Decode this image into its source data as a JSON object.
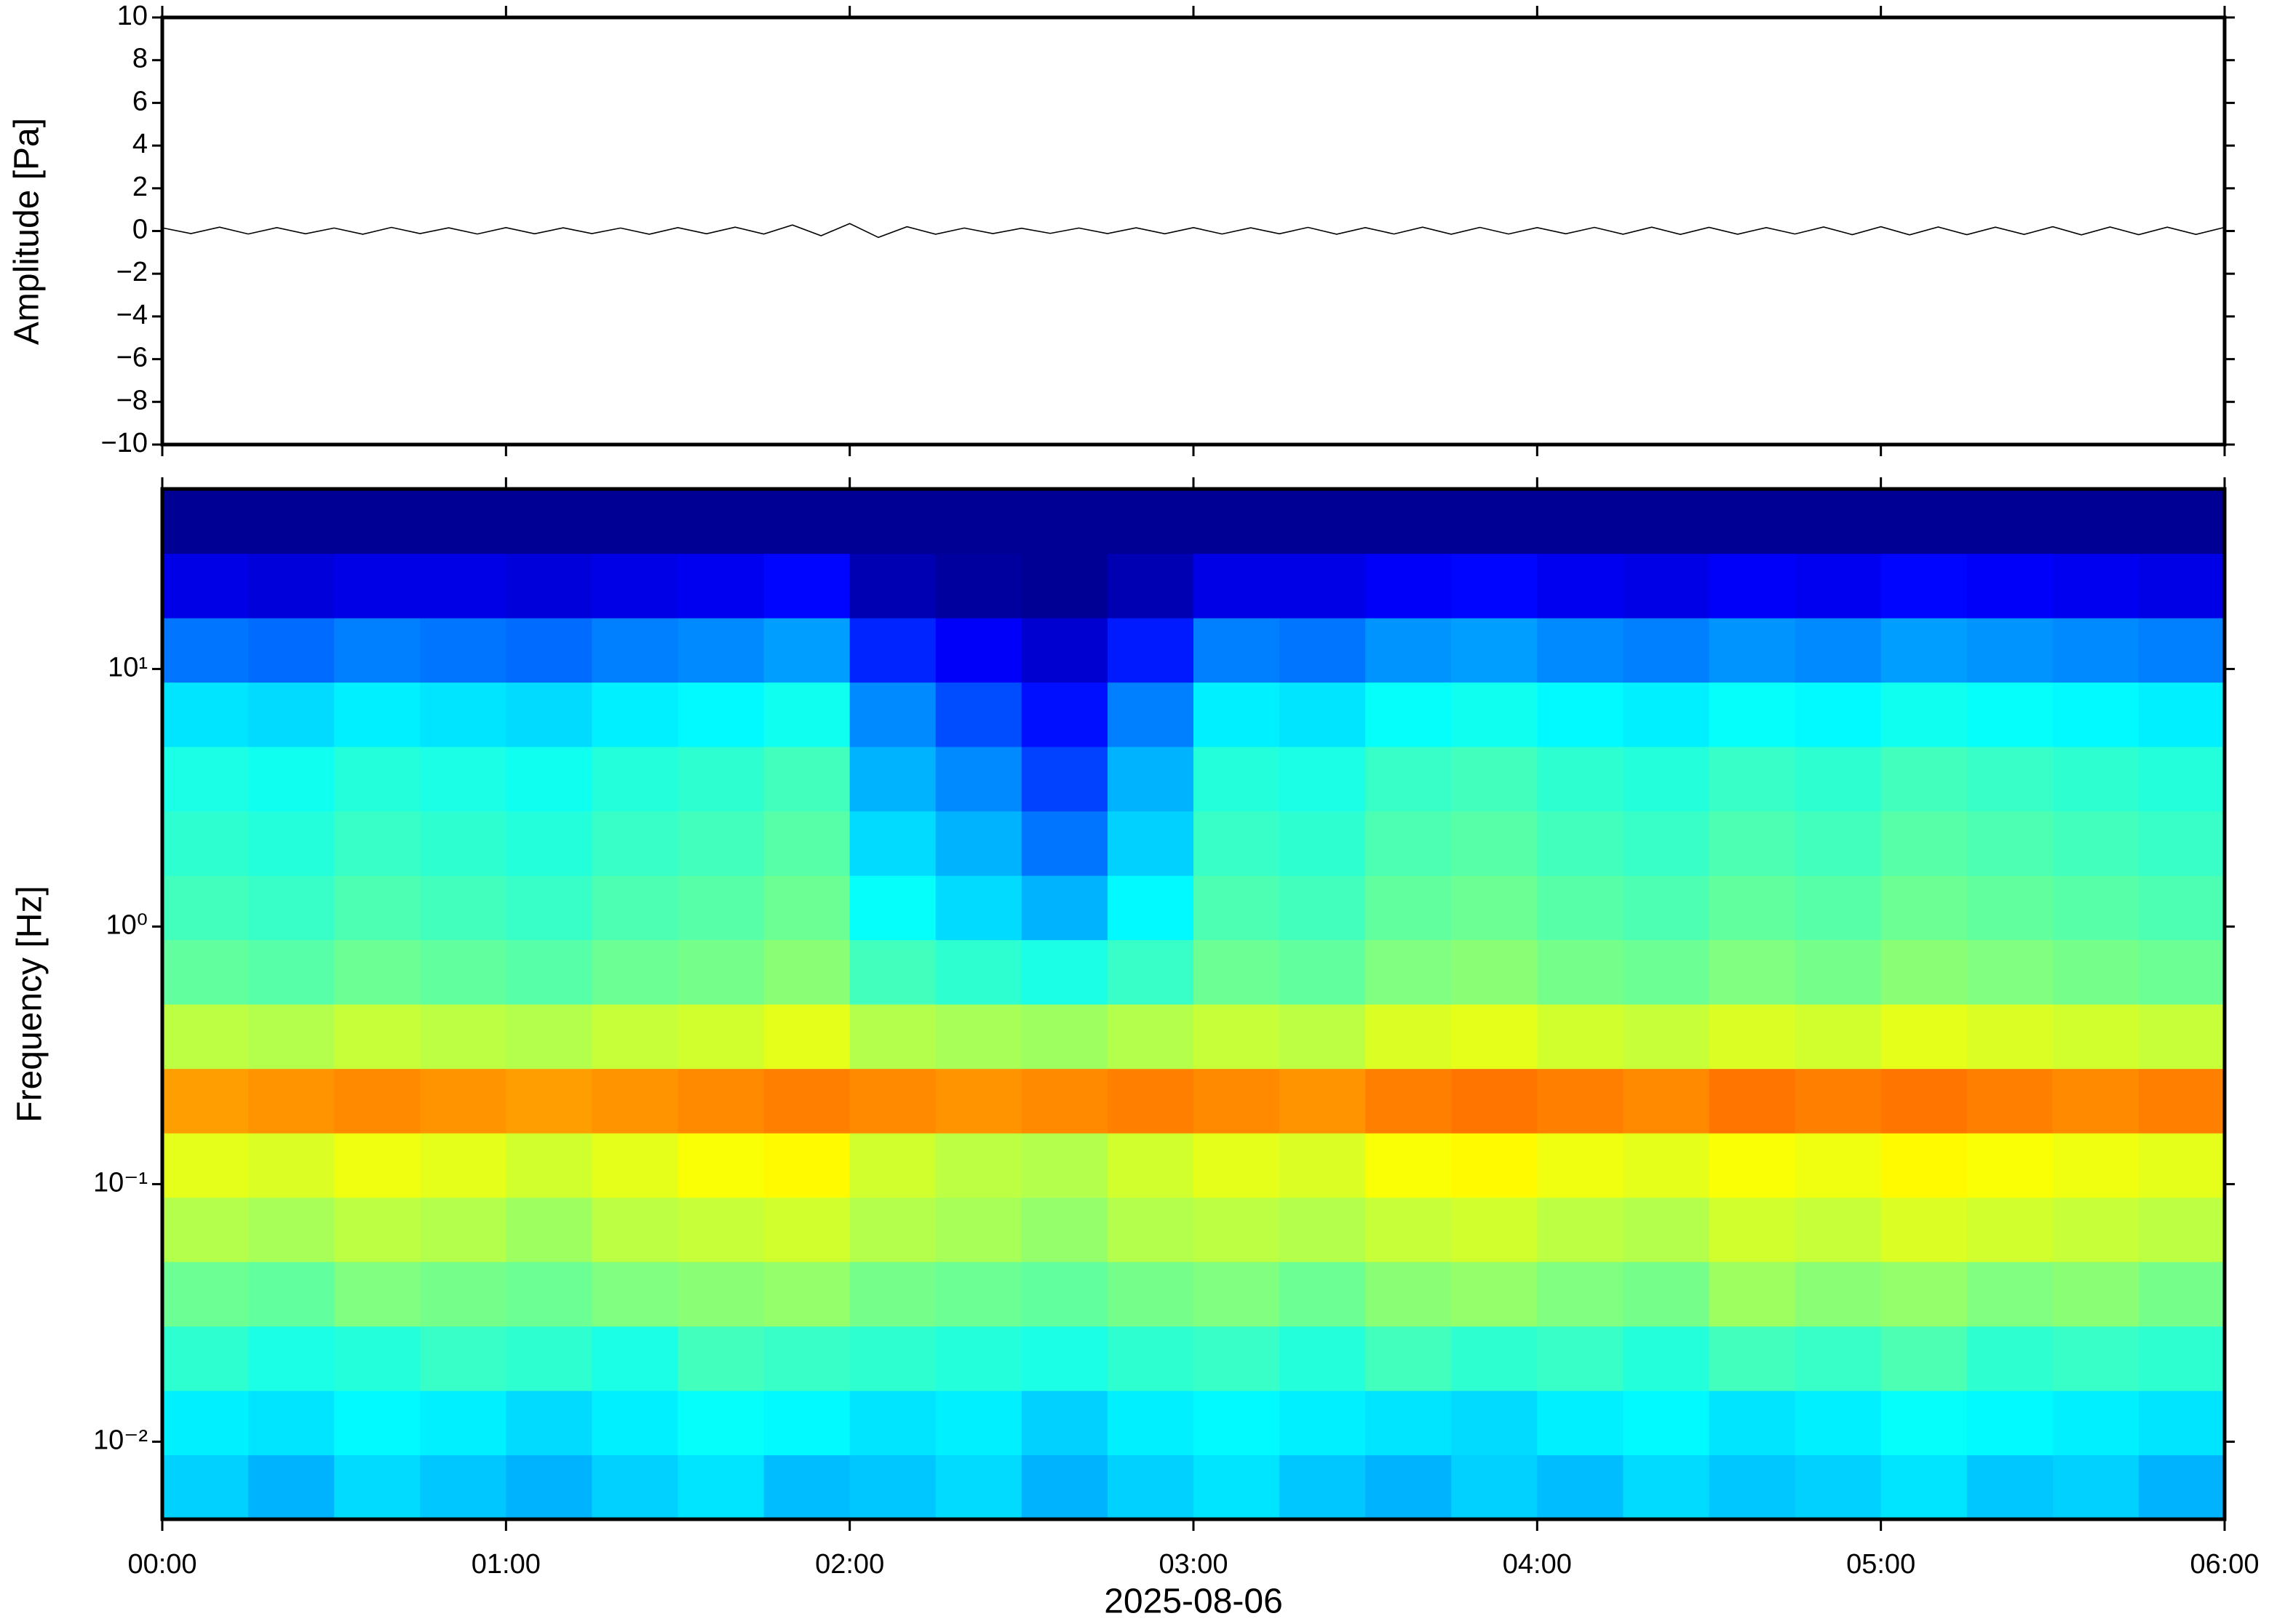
{
  "chart_data": [
    {
      "type": "line",
      "ylabel": "Amplitude [Pa]",
      "color": "#000000",
      "xlim": [
        0,
        360
      ],
      "xticks": [
        0,
        60,
        120,
        180,
        240,
        300,
        360
      ],
      "ylim": [
        -10,
        10
      ],
      "yticks": [
        {
          "value": -10,
          "label": "−10"
        },
        {
          "value": -8,
          "label": "−8"
        },
        {
          "value": -6,
          "label": "−6"
        },
        {
          "value": -4,
          "label": "−4"
        },
        {
          "value": -2,
          "label": "−2"
        },
        0,
        2,
        4,
        6,
        8,
        10
      ],
      "x": [
        0,
        5,
        10,
        15,
        20,
        25,
        30,
        35,
        40,
        45,
        50,
        55,
        60,
        65,
        70,
        75,
        80,
        85,
        90,
        95,
        100,
        105,
        110,
        115,
        120,
        125,
        130,
        135,
        140,
        145,
        150,
        155,
        160,
        165,
        170,
        175,
        180,
        185,
        190,
        195,
        200,
        205,
        210,
        215,
        220,
        225,
        230,
        235,
        240,
        245,
        250,
        255,
        260,
        265,
        270,
        275,
        280,
        285,
        290,
        295,
        300,
        305,
        310,
        315,
        320,
        325,
        330,
        335,
        340,
        345,
        350,
        355,
        360
      ],
      "values": [
        0.15,
        -0.12,
        0.18,
        -0.14,
        0.16,
        -0.13,
        0.14,
        -0.15,
        0.17,
        -0.12,
        0.15,
        -0.14,
        0.16,
        -0.13,
        0.15,
        -0.12,
        0.14,
        -0.15,
        0.16,
        -0.13,
        0.18,
        -0.14,
        0.28,
        -0.22,
        0.35,
        -0.3,
        0.2,
        -0.15,
        0.14,
        -0.12,
        0.13,
        -0.11,
        0.14,
        -0.12,
        0.15,
        -0.13,
        0.16,
        -0.14,
        0.15,
        -0.13,
        0.17,
        -0.15,
        0.16,
        -0.14,
        0.18,
        -0.15,
        0.17,
        -0.14,
        0.16,
        -0.13,
        0.17,
        -0.15,
        0.18,
        -0.16,
        0.17,
        -0.15,
        0.16,
        -0.14,
        0.19,
        -0.17,
        0.2,
        -0.18,
        0.19,
        -0.17,
        0.18,
        -0.16,
        0.2,
        -0.18,
        0.19,
        -0.17,
        0.18,
        -0.16,
        0.17
      ]
    },
    {
      "type": "heatmap",
      "ylabel": "Frequency [Hz]",
      "xlabel": "2025-08-06",
      "colormap": "jet",
      "log_y": true,
      "xlim": [
        0,
        360
      ],
      "xticks": [
        {
          "value": 0,
          "label": "00:00"
        },
        {
          "value": 60,
          "label": "01:00"
        },
        {
          "value": 120,
          "label": "02:00"
        },
        {
          "value": 180,
          "label": "03:00"
        },
        {
          "value": 240,
          "label": "04:00"
        },
        {
          "value": 300,
          "label": "05:00"
        },
        {
          "value": 360,
          "label": "06:00"
        }
      ],
      "ylim": [
        0.005,
        50
      ],
      "yticks": [
        {
          "value": 0.01,
          "label": "10⁻²"
        },
        {
          "value": 0.1,
          "label": "10⁻¹"
        },
        {
          "value": 1,
          "label": "10⁰"
        },
        {
          "value": 10,
          "label": "10¹"
        }
      ],
      "x_bins": [
        0,
        15,
        30,
        45,
        60,
        75,
        90,
        105,
        120,
        135,
        150,
        165,
        180,
        195,
        210,
        225,
        240,
        255,
        270,
        285,
        300,
        315,
        330,
        345,
        360
      ],
      "y_bins": [
        0.005,
        0.00889,
        0.0158,
        0.0281,
        0.05,
        0.0889,
        0.158,
        0.281,
        0.5,
        0.889,
        1.58,
        2.81,
        5,
        8.89,
        15.8,
        28.1,
        50
      ],
      "z": [
        [
          0.33,
          0.3,
          0.34,
          0.32,
          0.3,
          0.33,
          0.35,
          0.31,
          0.32,
          0.34,
          0.3,
          0.33,
          0.35,
          0.32,
          0.3,
          0.33,
          0.31,
          0.34,
          0.32,
          0.33,
          0.35,
          0.32,
          0.33,
          0.3
        ],
        [
          0.36,
          0.35,
          0.37,
          0.36,
          0.34,
          0.36,
          0.38,
          0.37,
          0.35,
          0.36,
          0.33,
          0.36,
          0.37,
          0.36,
          0.35,
          0.34,
          0.36,
          0.37,
          0.35,
          0.36,
          0.38,
          0.37,
          0.36,
          0.35
        ],
        [
          0.42,
          0.4,
          0.41,
          0.43,
          0.42,
          0.4,
          0.44,
          0.43,
          0.42,
          0.41,
          0.4,
          0.42,
          0.43,
          0.41,
          0.44,
          0.42,
          0.43,
          0.41,
          0.44,
          0.43,
          0.45,
          0.42,
          0.43,
          0.42
        ],
        [
          0.48,
          0.47,
          0.5,
          0.49,
          0.48,
          0.5,
          0.51,
          0.52,
          0.49,
          0.48,
          0.47,
          0.49,
          0.5,
          0.48,
          0.51,
          0.52,
          0.5,
          0.49,
          0.53,
          0.51,
          0.52,
          0.5,
          0.51,
          0.49
        ],
        [
          0.55,
          0.54,
          0.56,
          0.55,
          0.53,
          0.56,
          0.57,
          0.58,
          0.55,
          0.54,
          0.52,
          0.55,
          0.56,
          0.55,
          0.57,
          0.58,
          0.56,
          0.55,
          0.58,
          0.57,
          0.59,
          0.58,
          0.57,
          0.56
        ],
        [
          0.6,
          0.59,
          0.61,
          0.6,
          0.58,
          0.6,
          0.62,
          0.63,
          0.58,
          0.56,
          0.55,
          0.58,
          0.6,
          0.59,
          0.62,
          0.63,
          0.61,
          0.6,
          0.62,
          0.61,
          0.63,
          0.62,
          0.61,
          0.6
        ],
        [
          0.72,
          0.73,
          0.74,
          0.73,
          0.72,
          0.73,
          0.74,
          0.75,
          0.74,
          0.73,
          0.74,
          0.75,
          0.74,
          0.73,
          0.75,
          0.76,
          0.75,
          0.74,
          0.76,
          0.75,
          0.76,
          0.75,
          0.74,
          0.75
        ],
        [
          0.56,
          0.55,
          0.57,
          0.56,
          0.55,
          0.57,
          0.58,
          0.6,
          0.55,
          0.54,
          0.53,
          0.55,
          0.57,
          0.56,
          0.59,
          0.6,
          0.58,
          0.57,
          0.59,
          0.58,
          0.6,
          0.59,
          0.58,
          0.57
        ],
        [
          0.47,
          0.46,
          0.48,
          0.47,
          0.46,
          0.48,
          0.49,
          0.51,
          0.44,
          0.42,
          0.4,
          0.43,
          0.48,
          0.47,
          0.5,
          0.51,
          0.49,
          0.48,
          0.5,
          0.49,
          0.51,
          0.5,
          0.49,
          0.48
        ],
        [
          0.44,
          0.43,
          0.45,
          0.44,
          0.43,
          0.45,
          0.46,
          0.48,
          0.38,
          0.34,
          0.3,
          0.37,
          0.45,
          0.44,
          0.47,
          0.48,
          0.46,
          0.45,
          0.47,
          0.46,
          0.48,
          0.47,
          0.46,
          0.45
        ],
        [
          0.42,
          0.41,
          0.43,
          0.42,
          0.41,
          0.43,
          0.44,
          0.46,
          0.34,
          0.3,
          0.24,
          0.33,
          0.43,
          0.42,
          0.45,
          0.46,
          0.44,
          0.43,
          0.45,
          0.44,
          0.46,
          0.45,
          0.44,
          0.43
        ],
        [
          0.4,
          0.39,
          0.41,
          0.4,
          0.39,
          0.41,
          0.42,
          0.44,
          0.3,
          0.26,
          0.19,
          0.3,
          0.41,
          0.4,
          0.43,
          0.44,
          0.42,
          0.41,
          0.43,
          0.42,
          0.44,
          0.43,
          0.42,
          0.41
        ],
        [
          0.35,
          0.34,
          0.36,
          0.35,
          0.34,
          0.36,
          0.37,
          0.39,
          0.26,
          0.2,
          0.14,
          0.25,
          0.36,
          0.35,
          0.38,
          0.39,
          0.37,
          0.36,
          0.38,
          0.37,
          0.39,
          0.38,
          0.37,
          0.36
        ],
        [
          0.24,
          0.23,
          0.25,
          0.24,
          0.23,
          0.25,
          0.26,
          0.28,
          0.16,
          0.12,
          0.08,
          0.15,
          0.25,
          0.24,
          0.27,
          0.28,
          0.26,
          0.25,
          0.27,
          0.26,
          0.28,
          0.27,
          0.26,
          0.25
        ],
        [
          0.1,
          0.09,
          0.1,
          0.1,
          0.09,
          0.1,
          0.11,
          0.13,
          0.05,
          0.03,
          0.02,
          0.05,
          0.1,
          0.1,
          0.12,
          0.13,
          0.11,
          0.1,
          0.12,
          0.11,
          0.13,
          0.12,
          0.11,
          0.1
        ],
        [
          0.02,
          0.02,
          0.02,
          0.02,
          0.02,
          0.02,
          0.02,
          0.02,
          0.02,
          0.02,
          0.02,
          0.02,
          0.02,
          0.02,
          0.02,
          0.02,
          0.02,
          0.02,
          0.02,
          0.02,
          0.02,
          0.02,
          0.02,
          0.02
        ]
      ]
    }
  ]
}
